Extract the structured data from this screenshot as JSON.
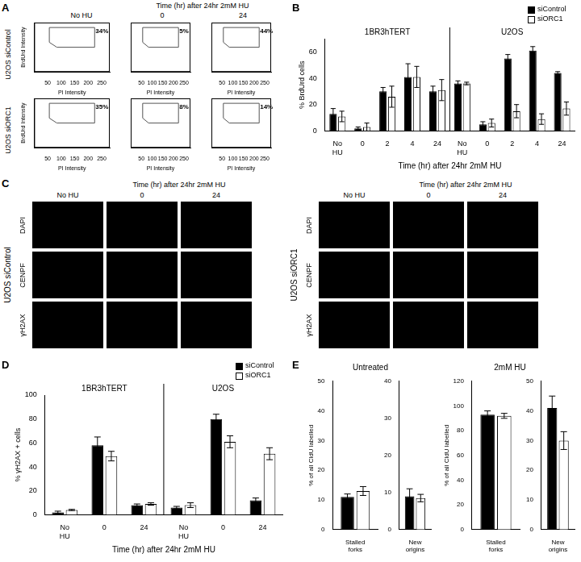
{
  "chart_data": [
    {
      "type": "scatter",
      "label": "A",
      "columns": [
        "No HU",
        "0",
        "24"
      ],
      "column_group": "Time (hr) after 24hr 2mM HU",
      "rows": [
        "U2OS siControl",
        "U2OS siORC1"
      ],
      "x_label": "PI Intensity",
      "y_label": "BrdUrd Intensity",
      "xlim": [
        0,
        280
      ],
      "xticks": [
        50,
        100,
        150,
        200,
        250
      ],
      "ylim": [
        0,
        280
      ],
      "tick_labels": "x",
      "grid": false,
      "data_labels": true,
      "values": [
        [
          34,
          5,
          44
        ],
        [
          35,
          8,
          14
        ]
      ],
      "value_labels": [
        [
          "34%",
          "5%",
          "44%"
        ],
        [
          "35%",
          "8%",
          "14%"
        ]
      ]
    },
    {
      "type": "bar",
      "label": "B",
      "groups": [
        "1BR3hTERT",
        "U2OS"
      ],
      "categories": [
        "No HU",
        "0",
        "2",
        "4",
        "24",
        "No HU",
        "0",
        "2",
        "4",
        "24"
      ],
      "x_label": "Time (hr) after 24hr 2mM HU",
      "y_label": "% BrdUrd cells",
      "ylim": [
        0,
        70
      ],
      "yticks": [
        0,
        20,
        40,
        60
      ],
      "grid": false,
      "legend": "upper right",
      "series": [
        {
          "name": "siControl",
          "color": "#000000",
          "values": [
            13,
            2,
            30,
            41,
            30,
            36,
            5,
            55,
            61,
            44
          ],
          "errors": [
            4,
            1,
            3,
            10,
            4,
            2,
            2,
            3,
            3,
            1
          ]
        },
        {
          "name": "siORC1",
          "color": "#ffffff",
          "values": [
            11,
            3,
            26,
            41,
            31,
            36,
            6,
            15,
            9,
            17
          ],
          "errors": [
            4,
            3,
            8,
            8,
            8,
            1,
            3,
            5,
            4,
            5
          ]
        }
      ]
    },
    {
      "type": "bar",
      "label": "D",
      "groups": [
        "1BR3hTERT",
        "U2OS"
      ],
      "categories": [
        "No HU",
        "0",
        "24",
        "No HU",
        "0",
        "24"
      ],
      "x_label": "Time (hr) after 24hr 2mM HU",
      "y_label": "% γH2AX + cells",
      "ylim": [
        0,
        100
      ],
      "yticks": [
        0,
        20,
        40,
        60,
        80,
        100
      ],
      "grid": false,
      "legend": "upper right",
      "series": [
        {
          "name": "siControl",
          "color": "#000000",
          "values": [
            2,
            58,
            8,
            6,
            80,
            12
          ],
          "errors": [
            1,
            7,
            1,
            1,
            4,
            2
          ]
        },
        {
          "name": "siORC1",
          "color": "#ffffff",
          "values": [
            4,
            49,
            9,
            8,
            61,
            51
          ],
          "errors": [
            0.5,
            4,
            1,
            2,
            5,
            5
          ]
        }
      ]
    },
    {
      "type": "bar",
      "label": "E",
      "title": "Untreated",
      "categories": [
        "Stalled forks"
      ],
      "y_label": "% of all CldU labelled",
      "ylim": [
        0,
        50
      ],
      "yticks": [
        0,
        10,
        20,
        30,
        40,
        50
      ],
      "grid": false,
      "series": [
        {
          "name": "siControl",
          "color": "#000000",
          "values": [
            11
          ],
          "errors": [
            1
          ]
        },
        {
          "name": "siORC1",
          "color": "#ffffff",
          "values": [
            13
          ],
          "errors": [
            1.5
          ]
        }
      ]
    },
    {
      "type": "bar",
      "categories": [
        "New origins"
      ],
      "ylim": [
        0,
        40
      ],
      "yticks": [
        0,
        10,
        20,
        30,
        40
      ],
      "grid": false,
      "series": [
        {
          "name": "siControl",
          "color": "#000000",
          "values": [
            9
          ],
          "errors": [
            2
          ]
        },
        {
          "name": "siORC1",
          "color": "#ffffff",
          "values": [
            8.5
          ],
          "errors": [
            1
          ]
        }
      ]
    },
    {
      "type": "bar",
      "title": "2mM HU",
      "categories": [
        "Stalled forks"
      ],
      "y_label": "% of all CldU labelled",
      "ylim": [
        0,
        120
      ],
      "yticks": [
        0,
        20,
        40,
        60,
        80,
        100,
        120
      ],
      "grid": false,
      "series": [
        {
          "name": "siControl",
          "color": "#000000",
          "values": [
            93
          ],
          "errors": [
            3
          ]
        },
        {
          "name": "siORC1",
          "color": "#ffffff",
          "values": [
            92
          ],
          "errors": [
            2
          ]
        }
      ]
    },
    {
      "type": "bar",
      "categories": [
        "New origins"
      ],
      "ylim": [
        0,
        50
      ],
      "yticks": [
        0,
        10,
        20,
        30,
        40,
        50
      ],
      "grid": false,
      "series": [
        {
          "name": "siControl",
          "color": "#000000",
          "values": [
            41
          ],
          "errors": [
            4
          ]
        },
        {
          "name": "siORC1",
          "color": "#ffffff",
          "values": [
            30
          ],
          "errors": [
            3
          ]
        }
      ]
    }
  ],
  "images": {
    "label": "C",
    "groups": [
      {
        "name": "U2OS siControl",
        "columns": [
          "No HU",
          "0",
          "24"
        ],
        "column_group": "Time (hr) after 24hr 2mM HU",
        "rows": [
          "DAPI",
          "CENPF",
          "γH2AX"
        ]
      },
      {
        "name": "U2OS siORC1",
        "columns": [
          "No HU",
          "0",
          "24"
        ],
        "column_group": "Time (hr) after 24hr 2mM HU",
        "rows": [
          "DAPI",
          "CENPF",
          "γH2AX"
        ]
      }
    ]
  }
}
